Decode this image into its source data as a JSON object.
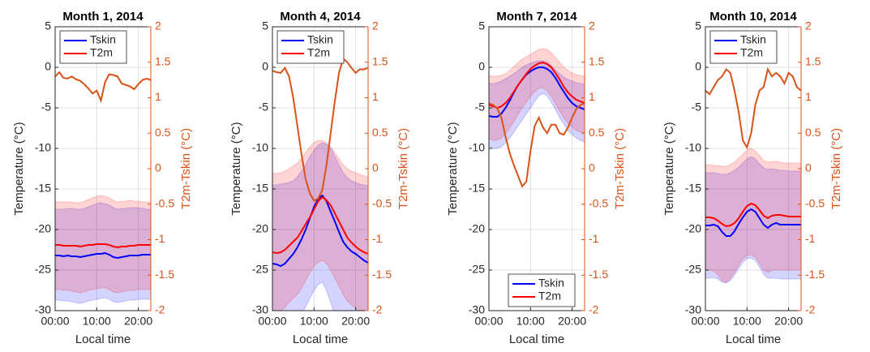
{
  "chart_data": [
    {
      "type": "line",
      "title": "Month 1, 2014",
      "xlabel": "Local time",
      "ylabel": "Temperature (°C)",
      "y2label": "T2m-Tskin (°C)",
      "x": [
        0,
        1,
        2,
        3,
        4,
        5,
        6,
        7,
        8,
        9,
        10,
        11,
        12,
        13,
        14,
        15,
        16,
        17,
        18,
        19,
        20,
        21,
        22,
        23
      ],
      "xlim": [
        0,
        23
      ],
      "xticks": [
        {
          "value": 0,
          "label": "00:00"
        },
        {
          "value": 10,
          "label": "10:00"
        },
        {
          "value": 20,
          "label": "20:00"
        }
      ],
      "ylim": [
        -30,
        5
      ],
      "yticks": [
        -30,
        -25,
        -20,
        -15,
        -10,
        -5,
        0,
        5
      ],
      "y2lim": [
        -2,
        2
      ],
      "y2ticks": [
        -2,
        -1.5,
        -1,
        -0.5,
        0,
        0.5,
        1,
        1.5,
        2
      ],
      "grid": true,
      "legend": "upper left",
      "series": [
        {
          "name": "Tskin",
          "color": "#0000ff",
          "values": [
            -23.2,
            -23.2,
            -23.3,
            -23.2,
            -23.3,
            -23.3,
            -23.4,
            -23.3,
            -23.2,
            -23.1,
            -23.0,
            -23.0,
            -22.9,
            -23.1,
            -23.4,
            -23.5,
            -23.4,
            -23.3,
            -23.2,
            -23.2,
            -23.2,
            -23.1,
            -23.1,
            -23.1
          ],
          "upper": [
            -17.5,
            -17.5,
            -17.5,
            -17.4,
            -17.4,
            -17.5,
            -17.5,
            -17.4,
            -17.2,
            -17.0,
            -16.8,
            -16.7,
            -16.8,
            -17.0,
            -17.3,
            -17.5,
            -17.4,
            -17.4,
            -17.3,
            -17.3,
            -17.3,
            -17.4,
            -17.5,
            -17.5
          ],
          "lower": [
            -28.7,
            -28.7,
            -28.8,
            -28.8,
            -28.9,
            -29.0,
            -29.1,
            -29.0,
            -28.8,
            -28.7,
            -28.6,
            -28.5,
            -28.4,
            -28.6,
            -28.9,
            -29.0,
            -28.9,
            -28.8,
            -28.7,
            -28.7,
            -28.6,
            -28.6,
            -28.6,
            -28.6
          ]
        },
        {
          "name": "T2m",
          "color": "#ff0000",
          "values": [
            -21.9,
            -21.9,
            -22.0,
            -22.0,
            -22.0,
            -22.0,
            -22.1,
            -22.0,
            -21.9,
            -21.9,
            -21.8,
            -21.8,
            -21.8,
            -21.9,
            -22.1,
            -22.2,
            -22.1,
            -22.1,
            -22.0,
            -22.0,
            -21.9,
            -21.9,
            -21.9,
            -21.9
          ],
          "upper": [
            -16.6,
            -16.6,
            -16.6,
            -16.6,
            -16.6,
            -16.7,
            -16.7,
            -16.5,
            -16.3,
            -16.1,
            -15.9,
            -15.8,
            -15.9,
            -16.1,
            -16.4,
            -16.6,
            -16.5,
            -16.5,
            -16.4,
            -16.5,
            -16.5,
            -16.6,
            -16.6,
            -16.6
          ],
          "lower": [
            -27.4,
            -27.4,
            -27.5,
            -27.5,
            -27.6,
            -27.7,
            -27.8,
            -27.7,
            -27.5,
            -27.4,
            -27.3,
            -27.2,
            -27.2,
            -27.4,
            -27.7,
            -27.8,
            -27.7,
            -27.6,
            -27.5,
            -27.5,
            -27.4,
            -27.4,
            -27.4,
            -27.4
          ]
        },
        {
          "color": "#d95319",
          "axis": "y2",
          "values": [
            1.3,
            1.36,
            1.28,
            1.27,
            1.3,
            1.26,
            1.24,
            1.19,
            1.13,
            1.06,
            1.1,
            0.96,
            1.22,
            1.33,
            1.32,
            1.3,
            1.2,
            1.18,
            1.16,
            1.12,
            1.19,
            1.25,
            1.27,
            1.25
          ]
        }
      ]
    },
    {
      "type": "line",
      "title": "Month 4, 2014",
      "xlabel": "Local time",
      "ylabel": "Temperature (°C)",
      "y2label": "T2m-Tskin (°C)",
      "x": [
        0,
        1,
        2,
        3,
        4,
        5,
        6,
        7,
        8,
        9,
        10,
        11,
        12,
        13,
        14,
        15,
        16,
        17,
        18,
        19,
        20,
        21,
        22,
        23
      ],
      "xlim": [
        0,
        23
      ],
      "xticks": [
        {
          "value": 0,
          "label": "00:00"
        },
        {
          "value": 10,
          "label": "10:00"
        },
        {
          "value": 20,
          "label": "20:00"
        }
      ],
      "ylim": [
        -30,
        5
      ],
      "yticks": [
        -30,
        -25,
        -20,
        -15,
        -10,
        -5,
        0,
        5
      ],
      "y2lim": [
        -2,
        2
      ],
      "y2ticks": [
        -2,
        -1.5,
        -1,
        -0.5,
        0,
        0.5,
        1,
        1.5,
        2
      ],
      "grid": true,
      "legend": "upper left",
      "series": [
        {
          "name": "Tskin",
          "color": "#0000ff",
          "values": [
            -24.2,
            -24.3,
            -24.5,
            -24.2,
            -23.6,
            -23.0,
            -22.2,
            -21.2,
            -20.0,
            -18.6,
            -17.2,
            -16.2,
            -15.8,
            -16.5,
            -17.8,
            -19.0,
            -20.3,
            -21.5,
            -22.2,
            -22.7,
            -23.0,
            -23.4,
            -23.8,
            -24.1
          ],
          "upper": [
            -14.5,
            -14.5,
            -14.4,
            -14.3,
            -14.2,
            -14.0,
            -13.5,
            -12.8,
            -12.0,
            -11.0,
            -10.2,
            -9.6,
            -9.3,
            -9.5,
            -10.0,
            -11.0,
            -12.0,
            -13.0,
            -13.6,
            -14.0,
            -14.2,
            -14.4,
            -14.5,
            -14.6
          ],
          "lower": [
            -33.5,
            -33.6,
            -33.8,
            -33.5,
            -33.0,
            -32.5,
            -31.5,
            -30.5,
            -29.5,
            -28.5,
            -27.5,
            -26.8,
            -26.5,
            -27.5,
            -29.0,
            -30.5,
            -32.0,
            -33.0,
            -33.5,
            -33.8,
            -34.0,
            -34.0,
            -34.0,
            -34.0
          ]
        },
        {
          "name": "T2m",
          "color": "#ff0000",
          "values": [
            -22.8,
            -22.9,
            -22.8,
            -22.5,
            -22.0,
            -21.5,
            -21.0,
            -20.2,
            -19.3,
            -18.5,
            -17.5,
            -16.5,
            -16.0,
            -16.4,
            -17.0,
            -18.0,
            -19.0,
            -20.0,
            -21.0,
            -21.6,
            -22.1,
            -22.5,
            -22.8,
            -23.0
          ],
          "upper": [
            -13.0,
            -13.1,
            -13.0,
            -12.8,
            -12.5,
            -12.2,
            -11.8,
            -11.2,
            -10.5,
            -9.8,
            -9.3,
            -9.0,
            -9.0,
            -9.3,
            -9.8,
            -10.5,
            -11.3,
            -12.0,
            -12.5,
            -12.8,
            -13.0,
            -13.2,
            -13.4,
            -13.5
          ],
          "lower": [
            -30.0,
            -30.1,
            -30.0,
            -29.6,
            -29.0,
            -28.5,
            -28.0,
            -27.2,
            -26.3,
            -25.3,
            -24.5,
            -24.0,
            -23.8,
            -24.2,
            -25.0,
            -26.0,
            -27.0,
            -28.0,
            -28.8,
            -29.3,
            -29.7,
            -30.0,
            -30.2,
            -30.4
          ]
        },
        {
          "color": "#d95319",
          "axis": "y2",
          "values": [
            1.38,
            1.36,
            1.35,
            1.42,
            1.3,
            1.0,
            0.6,
            0.2,
            -0.15,
            -0.35,
            -0.45,
            -0.42,
            -0.3,
            0.05,
            0.5,
            0.95,
            1.35,
            1.55,
            1.5,
            1.42,
            1.35,
            1.4,
            1.4,
            1.42
          ]
        }
      ]
    },
    {
      "type": "line",
      "title": "Month 7, 2014",
      "xlabel": "Local time",
      "ylabel": "Temperature (°C)",
      "y2label": "T2m-Tskin (°C)",
      "x": [
        0,
        1,
        2,
        3,
        4,
        5,
        6,
        7,
        8,
        9,
        10,
        11,
        12,
        13,
        14,
        15,
        16,
        17,
        18,
        19,
        20,
        21,
        22,
        23
      ],
      "xlim": [
        0,
        23
      ],
      "xticks": [
        {
          "value": 0,
          "label": "00:00"
        },
        {
          "value": 10,
          "label": "10:00"
        },
        {
          "value": 20,
          "label": "20:00"
        }
      ],
      "ylim": [
        -30,
        5
      ],
      "yticks": [
        -30,
        -25,
        -20,
        -15,
        -10,
        -5,
        0,
        5
      ],
      "y2lim": [
        -2,
        2
      ],
      "y2ticks": [
        -2,
        -1.5,
        -1,
        -0.5,
        0,
        0.5,
        1,
        1.5,
        2
      ],
      "grid": true,
      "legend": "lower left",
      "series": [
        {
          "name": "Tskin",
          "color": "#0000ff",
          "values": [
            -6.0,
            -6.1,
            -6.1,
            -5.7,
            -5.0,
            -4.1,
            -3.1,
            -2.2,
            -1.5,
            -0.9,
            -0.5,
            -0.2,
            0.0,
            0.0,
            -0.2,
            -0.6,
            -1.3,
            -2.2,
            -3.0,
            -3.8,
            -4.4,
            -4.8,
            -5.0,
            -5.2
          ],
          "upper": [
            -2.0,
            -2.0,
            -1.9,
            -1.7,
            -1.4,
            -1.1,
            -0.8,
            -0.4,
            0.0,
            0.3,
            0.5,
            0.7,
            0.8,
            0.8,
            0.6,
            0.2,
            -0.3,
            -0.8,
            -1.2,
            -1.5,
            -1.7,
            -1.9,
            -2.0,
            -2.1
          ],
          "lower": [
            -9.8,
            -10.0,
            -10.0,
            -9.8,
            -9.3,
            -8.7,
            -8.0,
            -7.2,
            -6.5,
            -5.7,
            -5.0,
            -4.2,
            -3.5,
            -3.2,
            -3.5,
            -4.3,
            -5.2,
            -6.2,
            -7.0,
            -7.8,
            -8.3,
            -8.7,
            -9.0,
            -9.2
          ]
        },
        {
          "name": "T2m",
          "color": "#ff0000",
          "values": [
            -4.6,
            -4.8,
            -5.0,
            -4.8,
            -4.4,
            -3.8,
            -3.0,
            -2.2,
            -1.5,
            -0.8,
            -0.2,
            0.2,
            0.5,
            0.6,
            0.4,
            0.0,
            -0.7,
            -1.5,
            -2.4,
            -3.1,
            -3.6,
            -4.0,
            -4.2,
            -4.4
          ],
          "upper": [
            -1.0,
            -1.1,
            -1.1,
            -1.0,
            -0.8,
            -0.4,
            0.1,
            0.6,
            1.0,
            1.3,
            1.6,
            1.9,
            2.2,
            2.3,
            2.2,
            1.8,
            1.2,
            0.6,
            0.0,
            -0.4,
            -0.7,
            -0.9,
            -1.0,
            -1.1
          ],
          "lower": [
            -8.8,
            -9.0,
            -9.0,
            -8.7,
            -8.2,
            -7.5,
            -6.7,
            -5.8,
            -5.0,
            -4.3,
            -3.6,
            -3.0,
            -2.6,
            -2.5,
            -2.9,
            -3.6,
            -4.5,
            -5.4,
            -6.2,
            -6.9,
            -7.4,
            -7.8,
            -8.0,
            -8.2
          ]
        },
        {
          "color": "#d95319",
          "axis": "y2",
          "values": [
            0.92,
            0.9,
            0.85,
            0.72,
            0.45,
            0.22,
            0.05,
            -0.1,
            -0.25,
            -0.18,
            0.25,
            0.6,
            0.72,
            0.58,
            0.5,
            0.62,
            0.62,
            0.5,
            0.48,
            0.58,
            0.72,
            0.84,
            0.9,
            0.92
          ]
        }
      ]
    },
    {
      "type": "line",
      "title": "Month 10, 2014",
      "xlabel": "Local time",
      "ylabel": "Temperature (°C)",
      "y2label": "T2m-Tskin (°C)",
      "x": [
        0,
        1,
        2,
        3,
        4,
        5,
        6,
        7,
        8,
        9,
        10,
        11,
        12,
        13,
        14,
        15,
        16,
        17,
        18,
        19,
        20,
        21,
        22,
        23
      ],
      "xlim": [
        0,
        23
      ],
      "xticks": [
        {
          "value": 0,
          "label": "00:00"
        },
        {
          "value": 10,
          "label": "10:00"
        },
        {
          "value": 20,
          "label": "20:00"
        }
      ],
      "ylim": [
        -30,
        5
      ],
      "yticks": [
        -30,
        -25,
        -20,
        -15,
        -10,
        -5,
        0,
        5
      ],
      "y2lim": [
        -2,
        2
      ],
      "y2ticks": [
        -2,
        -1.5,
        -1,
        -0.5,
        0,
        0.5,
        1,
        1.5,
        2
      ],
      "grid": true,
      "legend": "upper left",
      "series": [
        {
          "name": "Tskin",
          "color": "#0000ff",
          "values": [
            -19.5,
            -19.5,
            -19.4,
            -19.6,
            -20.3,
            -20.8,
            -20.8,
            -20.2,
            -19.3,
            -18.5,
            -17.8,
            -17.5,
            -17.8,
            -18.6,
            -19.4,
            -19.8,
            -19.4,
            -19.2,
            -19.4,
            -19.4,
            -19.4,
            -19.4,
            -19.4,
            -19.4
          ],
          "upper": [
            -13.0,
            -13.0,
            -13.0,
            -13.1,
            -13.2,
            -13.2,
            -13.0,
            -12.7,
            -12.3,
            -11.8,
            -11.3,
            -11.0,
            -11.3,
            -11.9,
            -12.4,
            -12.6,
            -12.5,
            -12.6,
            -12.7,
            -12.7,
            -12.8,
            -12.8,
            -12.8,
            -12.8
          ],
          "lower": [
            -26.0,
            -26.0,
            -25.9,
            -26.1,
            -26.5,
            -26.6,
            -26.3,
            -25.6,
            -24.8,
            -24.0,
            -23.6,
            -23.5,
            -23.8,
            -24.6,
            -25.5,
            -26.0,
            -26.0,
            -26.0,
            -26.1,
            -26.1,
            -26.1,
            -26.1,
            -26.1,
            -26.1
          ]
        },
        {
          "name": "T2m",
          "color": "#ff0000",
          "values": [
            -18.5,
            -18.5,
            -18.6,
            -18.9,
            -19.3,
            -19.6,
            -19.5,
            -19.2,
            -18.6,
            -17.8,
            -17.1,
            -16.8,
            -17.0,
            -17.6,
            -18.3,
            -18.6,
            -18.3,
            -18.2,
            -18.2,
            -18.3,
            -18.4,
            -18.4,
            -18.4,
            -18.4
          ],
          "upper": [
            -12.0,
            -12.0,
            -12.1,
            -12.1,
            -12.2,
            -12.2,
            -12.0,
            -11.7,
            -11.2,
            -10.7,
            -10.2,
            -10.0,
            -10.3,
            -10.9,
            -11.5,
            -11.7,
            -11.6,
            -11.6,
            -11.7,
            -11.8,
            -11.8,
            -11.8,
            -11.8,
            -11.8
          ],
          "lower": [
            -25.0,
            -25.0,
            -25.1,
            -25.6,
            -26.3,
            -26.5,
            -26.0,
            -25.2,
            -24.4,
            -23.6,
            -23.2,
            -23.1,
            -23.4,
            -24.2,
            -25.0,
            -25.3,
            -25.0,
            -24.9,
            -25.0,
            -25.0,
            -25.0,
            -25.0,
            -25.0,
            -25.0
          ]
        },
        {
          "color": "#d95319",
          "axis": "y2",
          "values": [
            1.1,
            1.05,
            1.15,
            1.25,
            1.3,
            1.4,
            1.35,
            1.1,
            0.8,
            0.4,
            0.3,
            0.5,
            0.9,
            1.1,
            1.15,
            1.4,
            1.3,
            1.35,
            1.3,
            1.2,
            1.35,
            1.3,
            1.15,
            1.1
          ]
        }
      ]
    }
  ]
}
